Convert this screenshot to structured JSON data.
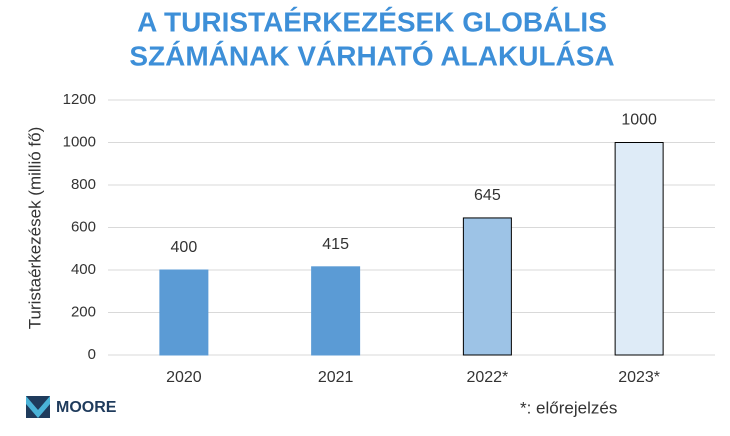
{
  "chart_data": {
    "type": "bar",
    "title": [
      "A TURISTAÉRKEZÉSEK GLOBÁLIS",
      "SZÁMÁNAK VÁRHATÓ ALAKULÁSA"
    ],
    "ylabel": "Turistaérkezések  (millió fő)",
    "categories": [
      "2020",
      "2021",
      "2022*",
      "2023*"
    ],
    "values": [
      400,
      415,
      645,
      1000
    ],
    "colors": [
      "#5b9bd5",
      "#5b9bd5",
      "#9dc3e6",
      "#deebf7"
    ],
    "edgecolors": [
      "#5b9bd5",
      "#5b9bd5",
      "#000000",
      "#000000"
    ],
    "ylim": [
      0,
      1200
    ],
    "yticks": [
      0,
      200,
      400,
      600,
      800,
      1000,
      1200
    ],
    "grid": true,
    "note": "*: előrejelzés"
  },
  "logo": "MOORE"
}
